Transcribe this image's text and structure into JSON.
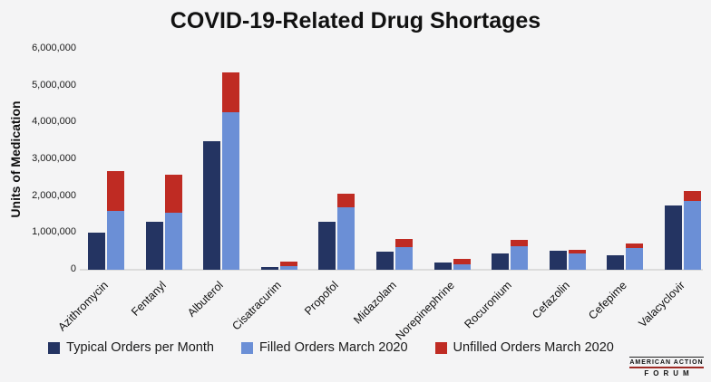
{
  "title": "COVID-19-Related Drug Shortages",
  "chart_data": {
    "type": "bar",
    "title": "COVID-19-Related Drug Shortages",
    "xlabel": "",
    "ylabel": "Units of Medication",
    "ylim": [
      0,
      6000000
    ],
    "grid": false,
    "legend_position": "bottom",
    "categories": [
      "Azithromycin",
      "Fentanyl",
      "Albuterol",
      "Cisatracurim",
      "Propofol",
      "Midazolam",
      "Norepinephrine",
      "Rocuronium",
      "Cefazolin",
      "Cefepime",
      "Valacyclovir"
    ],
    "series": [
      {
        "name": "Typical Orders per Month",
        "color": "#243462",
        "stack": null,
        "values": [
          1000000,
          1300000,
          3500000,
          75000,
          1300000,
          500000,
          200000,
          450000,
          525000,
          400000,
          1750000
        ]
      },
      {
        "name": "Filled Orders March 2020",
        "color": "#6b8fd6",
        "stack": "march2020",
        "values": [
          1600000,
          1550000,
          4275000,
          100000,
          1700000,
          625000,
          150000,
          640000,
          450000,
          590000,
          1870000
        ]
      },
      {
        "name": "Unfilled Orders March 2020",
        "color": "#bf2b23",
        "stack": "march2020",
        "values": [
          1075000,
          1025000,
          1075000,
          110000,
          360000,
          215000,
          140000,
          180000,
          90000,
          135000,
          260000
        ]
      }
    ],
    "ytick_values": [
      0,
      1000000,
      2000000,
      3000000,
      4000000,
      5000000,
      6000000
    ],
    "ytick_labels": [
      "0",
      "1,000,000",
      "2,000,000",
      "3,000,000",
      "4,000,000",
      "5,000,000",
      "6,000,000"
    ]
  },
  "logo": {
    "line1": "AMERICAN ACTION",
    "line2": "FORUM"
  },
  "colors": {
    "background": "#f4f4f5",
    "axis_line": "#dcdcdc",
    "text": "#111111"
  }
}
